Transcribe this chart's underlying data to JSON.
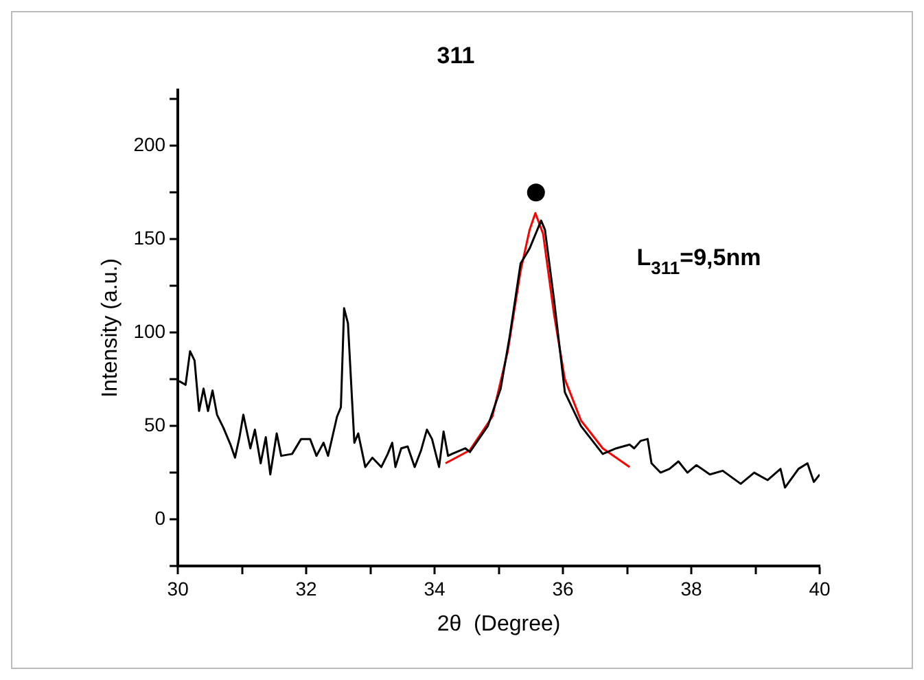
{
  "chart_data": {
    "type": "line",
    "title": "311",
    "xlabel": "2θ  (Degree)",
    "ylabel": "Intensity (a.u.)",
    "xlim": [
      30,
      40
    ],
    "xticks": [
      30,
      {
        "value": 31,
        "label": null
      },
      32,
      {
        "value": 33,
        "label": null
      },
      34,
      {
        "value": 35,
        "label": null
      },
      36,
      {
        "value": 37,
        "label": null
      },
      38,
      {
        "value": 39,
        "label": null
      },
      40
    ],
    "ylim": [
      -25,
      230
    ],
    "yticks": [
      {
        "value": -25,
        "label": null
      },
      0,
      {
        "value": 25,
        "label": null
      },
      50,
      {
        "value": 75,
        "label": null
      },
      100,
      {
        "value": 125,
        "label": null
      },
      150,
      {
        "value": 175,
        "label": null
      },
      200,
      {
        "value": 225,
        "label": null
      }
    ],
    "grid": false,
    "legend": false,
    "line_style": "solid",
    "marker": "none",
    "annotations": [
      "L$_{311}$=9,5nm"
    ],
    "series": [
      {
        "color": "#000000",
        "x": [
          30.02,
          30.12,
          30.19,
          30.26,
          30.33,
          30.4,
          30.47,
          30.54,
          30.61,
          30.71,
          30.82,
          30.89,
          30.96,
          31.02,
          31.13,
          31.2,
          31.29,
          31.37,
          31.44,
          31.54,
          31.61,
          31.78,
          31.92,
          32.06,
          32.16,
          32.27,
          32.34,
          32.48,
          32.54,
          32.59,
          32.65,
          32.72,
          32.75,
          32.81,
          32.92,
          33.03,
          33.17,
          33.27,
          33.34,
          33.39,
          33.48,
          33.58,
          33.69,
          33.79,
          33.88,
          33.96,
          34.07,
          34.14,
          34.21,
          34.27,
          34.48,
          34.55,
          34.83,
          35.03,
          35.17,
          35.34,
          35.48,
          35.66,
          35.72,
          35.86,
          36.03,
          36.28,
          36.62,
          36.83,
          37.04,
          37.11,
          37.21,
          37.32,
          37.38,
          37.52,
          37.66,
          37.8,
          37.94,
          38.08,
          38.29,
          38.49,
          38.77,
          38.98,
          39.19,
          39.39,
          39.46,
          39.67,
          39.81,
          39.91,
          40
        ],
        "values": [
          74,
          72,
          90,
          85,
          58,
          70,
          58,
          69,
          56,
          49,
          40,
          33,
          44,
          56,
          38,
          48,
          30,
          44,
          24,
          46,
          34,
          35,
          43,
          43,
          34,
          41,
          34,
          55,
          60,
          113,
          105,
          60,
          41,
          46,
          28,
          33,
          28,
          35,
          41,
          28,
          38,
          39,
          28,
          37,
          48,
          43,
          28,
          47,
          34,
          35,
          38,
          36,
          50,
          70,
          98,
          137,
          145,
          160,
          155,
          118,
          68,
          50,
          35,
          38,
          40,
          38,
          42,
          43,
          30,
          25,
          27,
          31,
          25,
          29,
          24,
          26,
          19,
          25,
          21,
          27,
          17,
          27,
          30,
          20,
          24
        ]
      },
      {
        "color": "#ff0000",
        "x": [
          34.17,
          34.55,
          34.9,
          35.14,
          35.34,
          35.48,
          35.57,
          35.69,
          35.86,
          36.03,
          36.28,
          36.62,
          37.04
        ],
        "values": [
          30,
          37,
          55,
          90,
          133,
          155,
          164,
          153,
          110,
          75,
          53,
          38,
          28
        ]
      },
      {
        "type": "scatter",
        "color": "#000000",
        "marker": "circle",
        "x": [
          35.58
        ],
        "values": [
          175
        ]
      }
    ]
  }
}
